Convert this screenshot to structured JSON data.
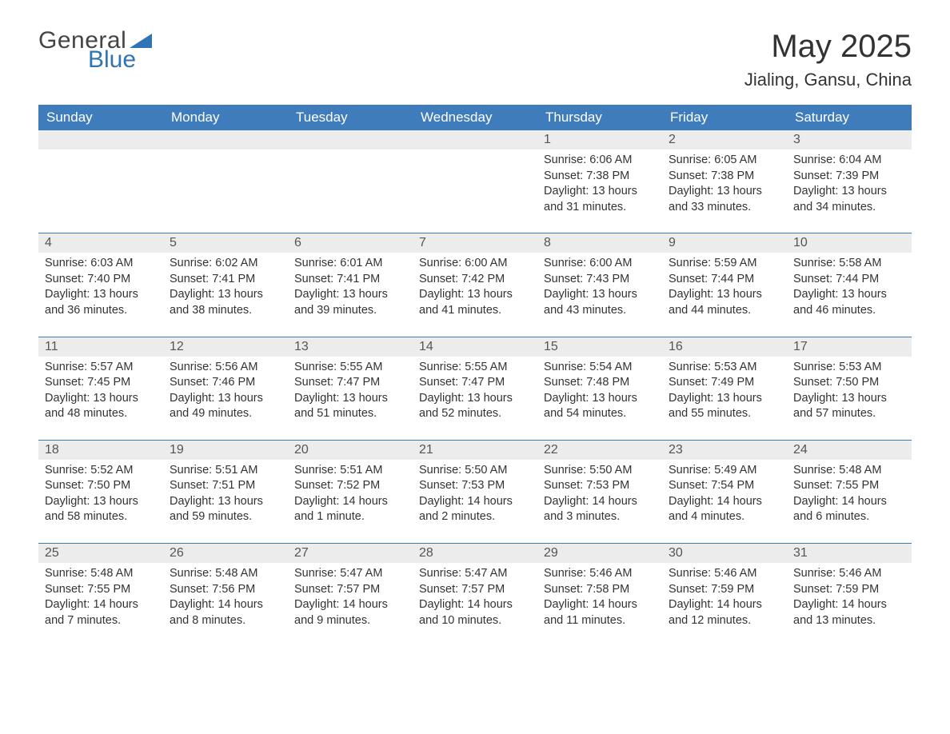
{
  "brand": {
    "general": "General",
    "blue": "Blue"
  },
  "logo_color": "#2f74b5",
  "header_bg": "#3e7cbc",
  "header_text_color": "#ffffff",
  "daybar_bg": "#ececec",
  "title": "May 2025",
  "location": "Jialing, Gansu, China",
  "weekdays": [
    "Sunday",
    "Monday",
    "Tuesday",
    "Wednesday",
    "Thursday",
    "Friday",
    "Saturday"
  ],
  "weeks": [
    [
      {
        "day": "",
        "sunrise": "",
        "sunset": "",
        "daylight": ""
      },
      {
        "day": "",
        "sunrise": "",
        "sunset": "",
        "daylight": ""
      },
      {
        "day": "",
        "sunrise": "",
        "sunset": "",
        "daylight": ""
      },
      {
        "day": "",
        "sunrise": "",
        "sunset": "",
        "daylight": ""
      },
      {
        "day": "1",
        "sunrise": "Sunrise: 6:06 AM",
        "sunset": "Sunset: 7:38 PM",
        "daylight": "Daylight: 13 hours and 31 minutes."
      },
      {
        "day": "2",
        "sunrise": "Sunrise: 6:05 AM",
        "sunset": "Sunset: 7:38 PM",
        "daylight": "Daylight: 13 hours and 33 minutes."
      },
      {
        "day": "3",
        "sunrise": "Sunrise: 6:04 AM",
        "sunset": "Sunset: 7:39 PM",
        "daylight": "Daylight: 13 hours and 34 minutes."
      }
    ],
    [
      {
        "day": "4",
        "sunrise": "Sunrise: 6:03 AM",
        "sunset": "Sunset: 7:40 PM",
        "daylight": "Daylight: 13 hours and 36 minutes."
      },
      {
        "day": "5",
        "sunrise": "Sunrise: 6:02 AM",
        "sunset": "Sunset: 7:41 PM",
        "daylight": "Daylight: 13 hours and 38 minutes."
      },
      {
        "day": "6",
        "sunrise": "Sunrise: 6:01 AM",
        "sunset": "Sunset: 7:41 PM",
        "daylight": "Daylight: 13 hours and 39 minutes."
      },
      {
        "day": "7",
        "sunrise": "Sunrise: 6:00 AM",
        "sunset": "Sunset: 7:42 PM",
        "daylight": "Daylight: 13 hours and 41 minutes."
      },
      {
        "day": "8",
        "sunrise": "Sunrise: 6:00 AM",
        "sunset": "Sunset: 7:43 PM",
        "daylight": "Daylight: 13 hours and 43 minutes."
      },
      {
        "day": "9",
        "sunrise": "Sunrise: 5:59 AM",
        "sunset": "Sunset: 7:44 PM",
        "daylight": "Daylight: 13 hours and 44 minutes."
      },
      {
        "day": "10",
        "sunrise": "Sunrise: 5:58 AM",
        "sunset": "Sunset: 7:44 PM",
        "daylight": "Daylight: 13 hours and 46 minutes."
      }
    ],
    [
      {
        "day": "11",
        "sunrise": "Sunrise: 5:57 AM",
        "sunset": "Sunset: 7:45 PM",
        "daylight": "Daylight: 13 hours and 48 minutes."
      },
      {
        "day": "12",
        "sunrise": "Sunrise: 5:56 AM",
        "sunset": "Sunset: 7:46 PM",
        "daylight": "Daylight: 13 hours and 49 minutes."
      },
      {
        "day": "13",
        "sunrise": "Sunrise: 5:55 AM",
        "sunset": "Sunset: 7:47 PM",
        "daylight": "Daylight: 13 hours and 51 minutes."
      },
      {
        "day": "14",
        "sunrise": "Sunrise: 5:55 AM",
        "sunset": "Sunset: 7:47 PM",
        "daylight": "Daylight: 13 hours and 52 minutes."
      },
      {
        "day": "15",
        "sunrise": "Sunrise: 5:54 AM",
        "sunset": "Sunset: 7:48 PM",
        "daylight": "Daylight: 13 hours and 54 minutes."
      },
      {
        "day": "16",
        "sunrise": "Sunrise: 5:53 AM",
        "sunset": "Sunset: 7:49 PM",
        "daylight": "Daylight: 13 hours and 55 minutes."
      },
      {
        "day": "17",
        "sunrise": "Sunrise: 5:53 AM",
        "sunset": "Sunset: 7:50 PM",
        "daylight": "Daylight: 13 hours and 57 minutes."
      }
    ],
    [
      {
        "day": "18",
        "sunrise": "Sunrise: 5:52 AM",
        "sunset": "Sunset: 7:50 PM",
        "daylight": "Daylight: 13 hours and 58 minutes."
      },
      {
        "day": "19",
        "sunrise": "Sunrise: 5:51 AM",
        "sunset": "Sunset: 7:51 PM",
        "daylight": "Daylight: 13 hours and 59 minutes."
      },
      {
        "day": "20",
        "sunrise": "Sunrise: 5:51 AM",
        "sunset": "Sunset: 7:52 PM",
        "daylight": "Daylight: 14 hours and 1 minute."
      },
      {
        "day": "21",
        "sunrise": "Sunrise: 5:50 AM",
        "sunset": "Sunset: 7:53 PM",
        "daylight": "Daylight: 14 hours and 2 minutes."
      },
      {
        "day": "22",
        "sunrise": "Sunrise: 5:50 AM",
        "sunset": "Sunset: 7:53 PM",
        "daylight": "Daylight: 14 hours and 3 minutes."
      },
      {
        "day": "23",
        "sunrise": "Sunrise: 5:49 AM",
        "sunset": "Sunset: 7:54 PM",
        "daylight": "Daylight: 14 hours and 4 minutes."
      },
      {
        "day": "24",
        "sunrise": "Sunrise: 5:48 AM",
        "sunset": "Sunset: 7:55 PM",
        "daylight": "Daylight: 14 hours and 6 minutes."
      }
    ],
    [
      {
        "day": "25",
        "sunrise": "Sunrise: 5:48 AM",
        "sunset": "Sunset: 7:55 PM",
        "daylight": "Daylight: 14 hours and 7 minutes."
      },
      {
        "day": "26",
        "sunrise": "Sunrise: 5:48 AM",
        "sunset": "Sunset: 7:56 PM",
        "daylight": "Daylight: 14 hours and 8 minutes."
      },
      {
        "day": "27",
        "sunrise": "Sunrise: 5:47 AM",
        "sunset": "Sunset: 7:57 PM",
        "daylight": "Daylight: 14 hours and 9 minutes."
      },
      {
        "day": "28",
        "sunrise": "Sunrise: 5:47 AM",
        "sunset": "Sunset: 7:57 PM",
        "daylight": "Daylight: 14 hours and 10 minutes."
      },
      {
        "day": "29",
        "sunrise": "Sunrise: 5:46 AM",
        "sunset": "Sunset: 7:58 PM",
        "daylight": "Daylight: 14 hours and 11 minutes."
      },
      {
        "day": "30",
        "sunrise": "Sunrise: 5:46 AM",
        "sunset": "Sunset: 7:59 PM",
        "daylight": "Daylight: 14 hours and 12 minutes."
      },
      {
        "day": "31",
        "sunrise": "Sunrise: 5:46 AM",
        "sunset": "Sunset: 7:59 PM",
        "daylight": "Daylight: 14 hours and 13 minutes."
      }
    ]
  ]
}
